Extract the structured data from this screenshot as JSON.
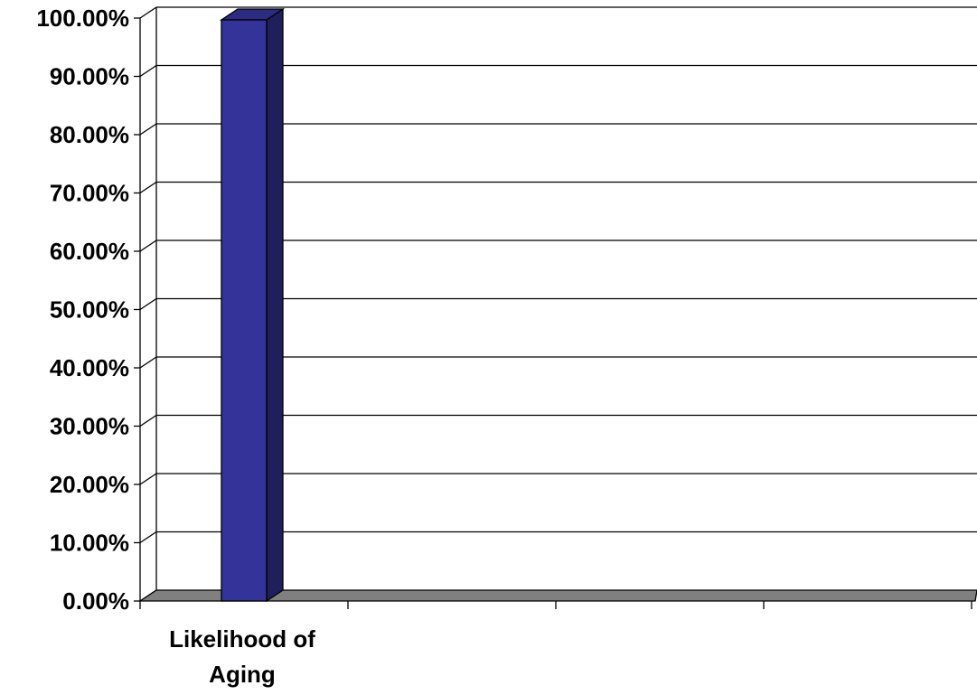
{
  "chart_data": {
    "type": "bar",
    "categories": [
      "Likelihood of Aging",
      "",
      "",
      ""
    ],
    "category_lines": [
      [
        "Likelihood of",
        "Aging"
      ],
      [],
      [],
      []
    ],
    "values": [
      100,
      null,
      null,
      null
    ],
    "ylim": [
      0,
      100
    ],
    "yticks": [
      "0.00%",
      "10.00%",
      "20.00%",
      "30.00%",
      "40.00%",
      "50.00%",
      "60.00%",
      "70.00%",
      "80.00%",
      "90.00%",
      "100.00%"
    ],
    "grid": true,
    "style": "3d-column",
    "title": "",
    "xlabel": "",
    "ylabel": ""
  },
  "colors": {
    "bar_front": "#333399",
    "bar_side": "#1f1f5c",
    "bar_top": "#2b2b80",
    "floor": "#808080",
    "gridline": "#000000",
    "background": "#ffffff"
  }
}
